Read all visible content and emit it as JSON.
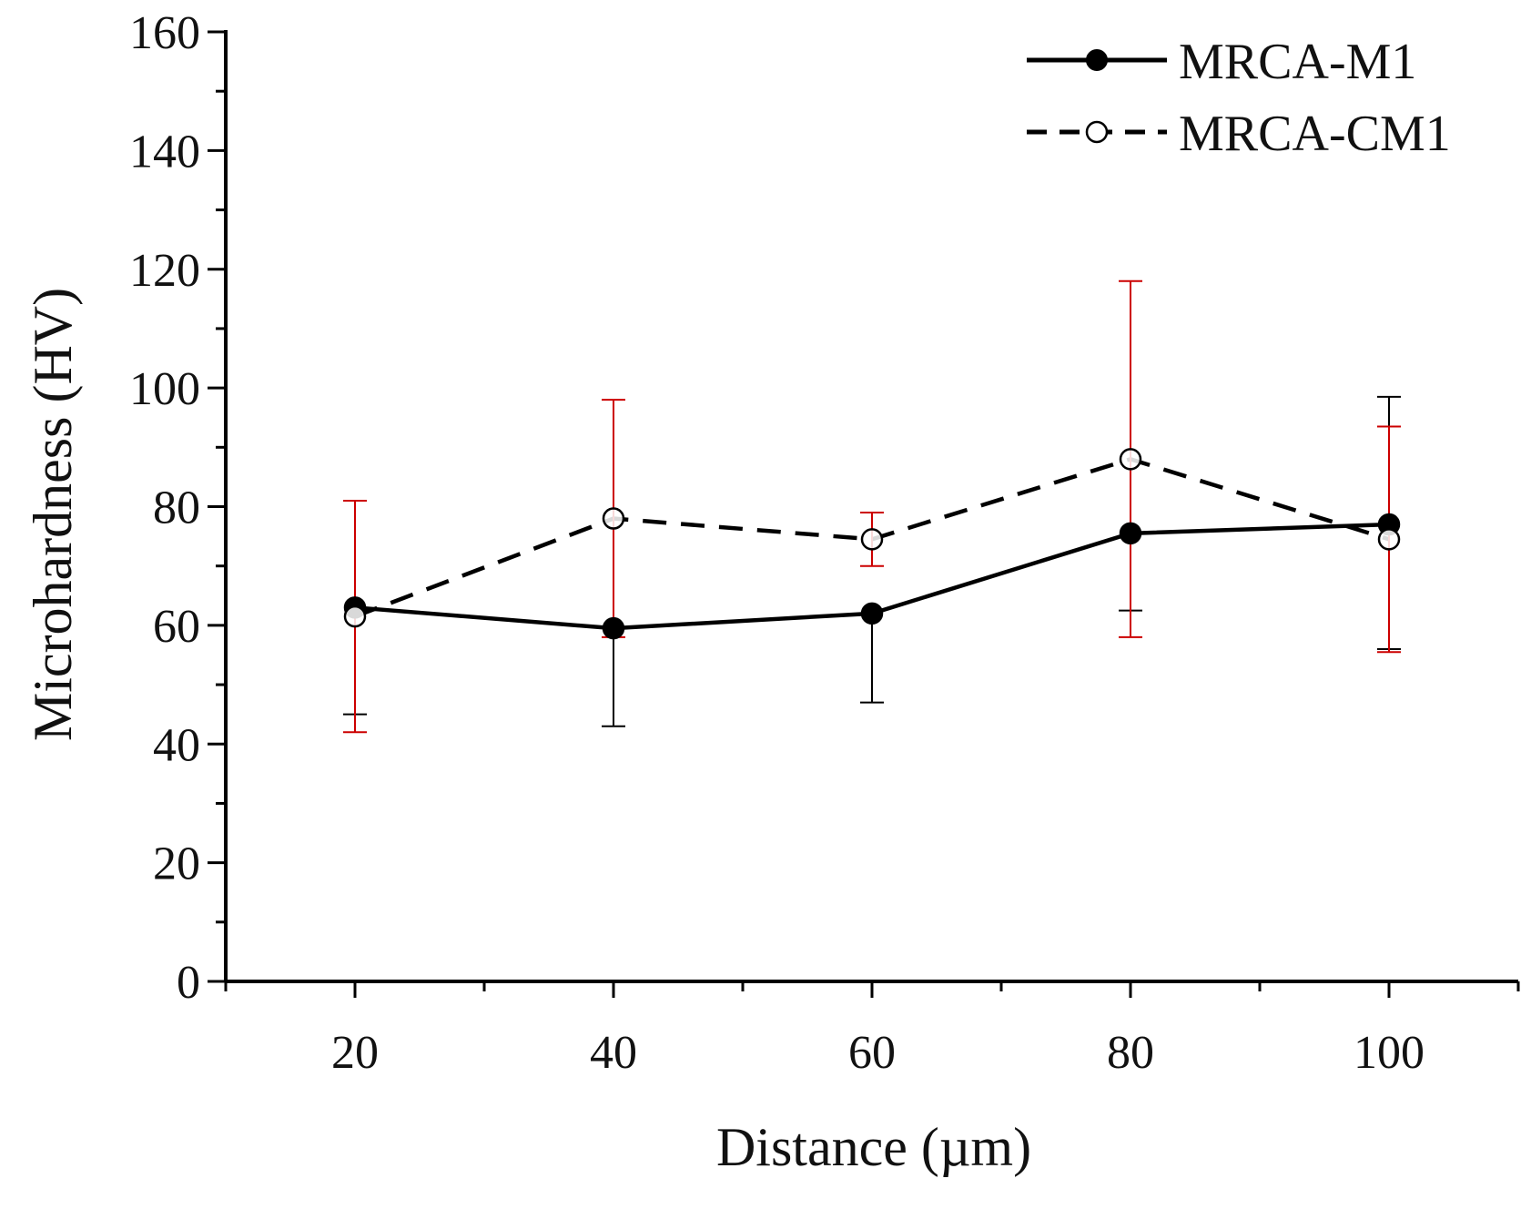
{
  "chart_data": {
    "type": "line",
    "title": "",
    "xlabel": "Distance (µm)",
    "ylabel": "Microhardness (HV)",
    "xlim": [
      10,
      110
    ],
    "ylim": [
      0,
      160
    ],
    "x_ticks": [
      20,
      40,
      60,
      80,
      100
    ],
    "y_ticks": [
      0,
      20,
      40,
      60,
      80,
      100,
      120,
      140,
      160
    ],
    "legend_position": "top-right",
    "series": [
      {
        "name": "MRCA-M1",
        "marker": "filled-circle",
        "line_style": "solid",
        "color": "#000000",
        "error_color": "#000000",
        "x": [
          20,
          40,
          60,
          80,
          100
        ],
        "values": [
          63,
          59.5,
          62,
          75.5,
          77
        ],
        "err_low": [
          18,
          16.5,
          15,
          13,
          21
        ],
        "err_high": [
          18,
          0,
          0,
          0,
          21.5
        ]
      },
      {
        "name": "MRCA-CM1",
        "marker": "open-circle",
        "line_style": "dashed",
        "color": "#000000",
        "error_color": "#cc0000",
        "x": [
          20,
          40,
          60,
          80,
          100
        ],
        "values": [
          61.5,
          78,
          74.5,
          88,
          74.5
        ],
        "err_low": [
          19.5,
          20,
          4.5,
          30,
          19
        ],
        "err_high": [
          19.5,
          20,
          4.5,
          30,
          19
        ]
      }
    ]
  }
}
